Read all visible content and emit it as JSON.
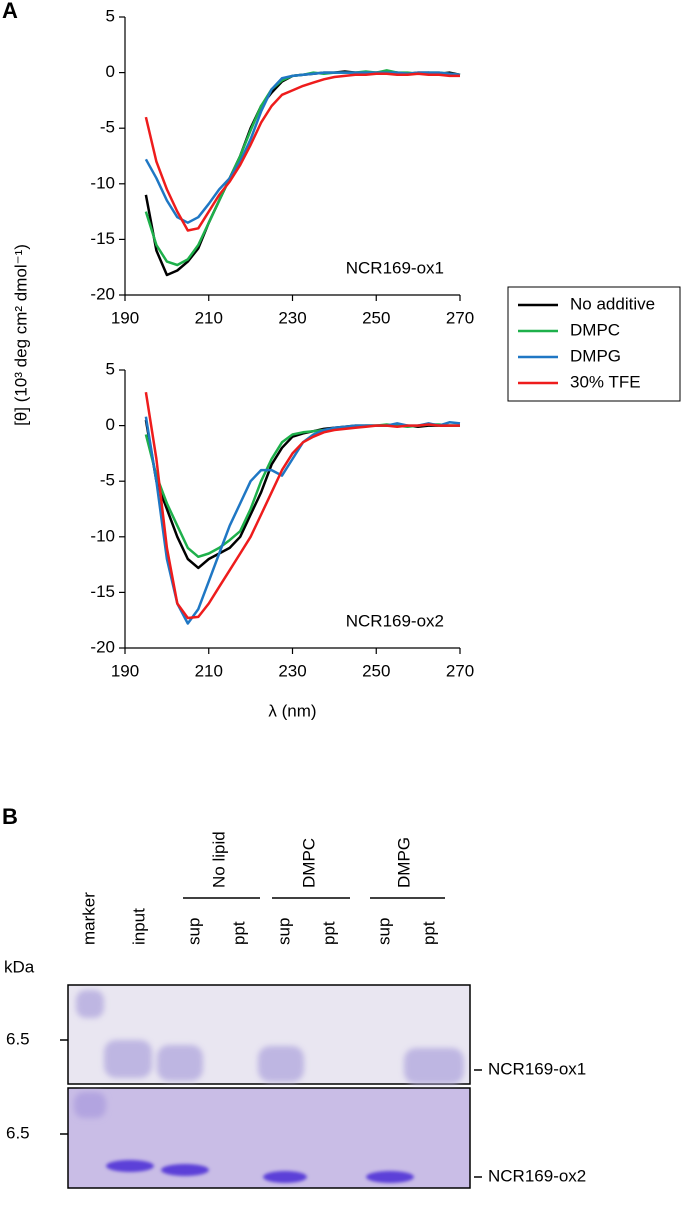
{
  "panels": [
    "A",
    "B"
  ],
  "chart_data": [
    {
      "type": "line",
      "ylabel": "[θ] (10³ deg cm² dmol⁻¹)",
      "annotation": "NCR169-ox1",
      "legend": "right",
      "x": [
        195,
        197.5,
        200,
        202.5,
        205,
        207.5,
        210,
        212.5,
        215,
        217.5,
        220,
        222.5,
        225,
        227.5,
        230,
        232.5,
        235,
        237.5,
        240,
        242.5,
        245,
        247.5,
        250,
        252.5,
        255,
        257.5,
        260,
        262.5,
        265,
        267.5,
        270
      ],
      "xlim": [
        190,
        270
      ],
      "xticks": [
        190,
        210,
        230,
        250,
        270
      ],
      "ylim": [
        -20,
        5
      ],
      "yticks": [
        -20,
        -15,
        -10,
        -5,
        0,
        5
      ],
      "series": [
        {
          "name": "No additive",
          "color": "#000000",
          "values": [
            -11,
            -16,
            -18.2,
            -17.8,
            -17,
            -15.8,
            -13.5,
            -11.5,
            -9.5,
            -7.5,
            -5,
            -3,
            -1.8,
            -0.8,
            -0.3,
            -0.2,
            -0.1,
            0,
            0,
            0.1,
            0,
            0,
            0,
            0.1,
            0,
            -0.1,
            0,
            0,
            -0.1,
            0,
            -0.2
          ]
        },
        {
          "name": "DMPC",
          "color": "#1eb04b",
          "values": [
            -12.5,
            -15.5,
            -17,
            -17.3,
            -16.8,
            -15.5,
            -13.5,
            -11.5,
            -9.5,
            -7.5,
            -5.2,
            -3,
            -1.5,
            -0.7,
            -0.3,
            -0.2,
            0,
            -0.1,
            0,
            0,
            0,
            0.1,
            0,
            0.2,
            0,
            0,
            -0.1,
            0,
            0,
            -0.1,
            -0.2
          ]
        },
        {
          "name": "DMPG",
          "color": "#1f77c4",
          "values": [
            -7.8,
            -9.5,
            -11.5,
            -13,
            -13.5,
            -13,
            -11.8,
            -10.5,
            -9.5,
            -8,
            -6,
            -3.5,
            -1.5,
            -0.5,
            -0.3,
            -0.2,
            -0.1,
            0,
            0,
            0,
            0,
            0,
            0,
            0,
            0,
            -0.1,
            0,
            0,
            0,
            -0.1,
            -0.2
          ]
        },
        {
          "name": "30% TFE",
          "color": "#ee1c1c",
          "values": [
            -4,
            -8,
            -10.5,
            -12.5,
            -14.2,
            -14,
            -12.5,
            -11,
            -9.8,
            -8.3,
            -6.5,
            -4.5,
            -3,
            -2,
            -1.6,
            -1.2,
            -0.9,
            -0.6,
            -0.4,
            -0.3,
            -0.2,
            -0.2,
            -0.1,
            -0.1,
            -0.2,
            -0.2,
            -0.1,
            -0.2,
            -0.2,
            -0.3,
            -0.3
          ]
        }
      ]
    },
    {
      "type": "line",
      "xlabel": "λ (nm)",
      "annotation": "NCR169-ox2",
      "x": [
        195,
        197.5,
        200,
        202.5,
        205,
        207.5,
        210,
        212.5,
        215,
        217.5,
        220,
        222.5,
        225,
        227.5,
        230,
        232.5,
        235,
        237.5,
        240,
        242.5,
        245,
        247.5,
        250,
        252.5,
        255,
        257.5,
        260,
        262.5,
        265,
        267.5,
        270
      ],
      "xlim": [
        190,
        270
      ],
      "xticks": [
        190,
        210,
        230,
        250,
        270
      ],
      "ylim": [
        -20,
        5
      ],
      "yticks": [
        -20,
        -15,
        -10,
        -5,
        0,
        5
      ],
      "series": [
        {
          "color": "#000000",
          "values": [
            0.5,
            -5,
            -7.5,
            -10,
            -12,
            -12.8,
            -12,
            -11.5,
            -11,
            -10,
            -8,
            -6,
            -3.5,
            -2,
            -1,
            -0.7,
            -0.5,
            -0.3,
            -0.2,
            -0.1,
            0,
            0,
            0,
            0,
            0,
            0,
            -0.1,
            0,
            0,
            0,
            0
          ]
        },
        {
          "color": "#1eb04b",
          "values": [
            -0.8,
            -4.5,
            -7,
            -9,
            -11,
            -11.8,
            -11.5,
            -11,
            -10.3,
            -9.5,
            -7.5,
            -5,
            -3,
            -1.5,
            -0.8,
            -0.6,
            -0.5,
            -0.4,
            -0.3,
            -0.2,
            -0.1,
            0,
            0,
            0.1,
            0,
            -0.1,
            0,
            0.1,
            0.1,
            0,
            0
          ]
        },
        {
          "color": "#1f77c4",
          "values": [
            0.8,
            -5,
            -12,
            -16,
            -17.8,
            -16.5,
            -14,
            -11.5,
            -9,
            -7,
            -5,
            -4,
            -4,
            -4.5,
            -3,
            -1.5,
            -0.8,
            -0.4,
            -0.2,
            -0.1,
            0,
            0,
            0,
            0,
            0.2,
            0,
            0,
            0.2,
            0,
            0.3,
            0.2
          ]
        },
        {
          "color": "#ee1c1c",
          "values": [
            3,
            -3,
            -11,
            -16,
            -17.3,
            -17.2,
            -16,
            -14.5,
            -13,
            -11.5,
            -10,
            -8,
            -6,
            -4,
            -2.5,
            -1.5,
            -1,
            -0.6,
            -0.4,
            -0.3,
            -0.2,
            -0.1,
            0,
            0,
            -0.1,
            0,
            0,
            0.1,
            0,
            0,
            0
          ]
        }
      ]
    }
  ],
  "gel": {
    "kda_label": "kDa",
    "lanes": [
      "marker",
      "input",
      "sup",
      "ppt",
      "sup",
      "ppt",
      "sup",
      "ppt"
    ],
    "groups": [
      "No lipid",
      "DMPC",
      "DMPG"
    ],
    "marker_labels": [
      "6.5",
      "6.5"
    ],
    "bands": [
      "NCR169-ox1",
      "NCR169-ox2"
    ]
  }
}
